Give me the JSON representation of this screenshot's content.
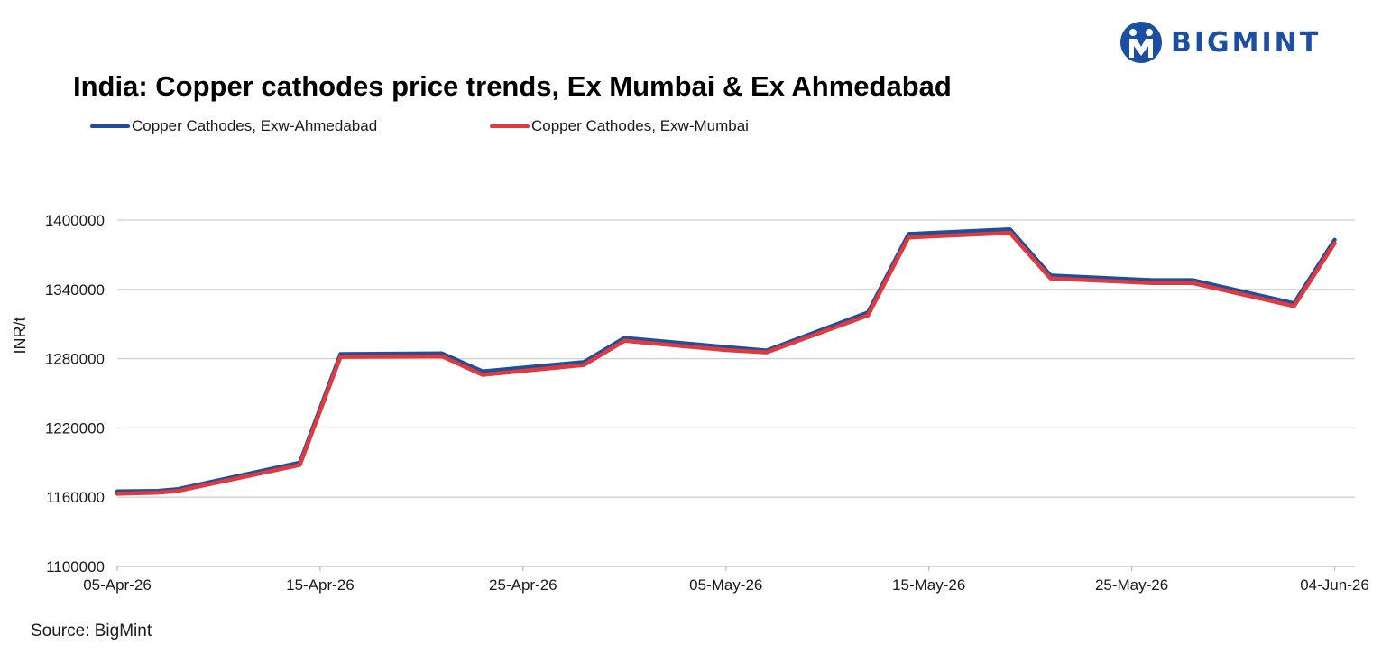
{
  "logo": {
    "text": "BIGMINT",
    "icon": "bigmint-logo-icon",
    "color": "#1c4fa0"
  },
  "source": "Source: BigMint",
  "chart_data": {
    "type": "line",
    "title": "India: Copper cathodes price trends, Ex Mumbai & Ex Ahmedabad",
    "xlabel": "",
    "ylabel": "INR/t",
    "ylim": [
      1100000,
      1400000
    ],
    "yticks": [
      "1100000",
      "1160000",
      "1220000",
      "1280000",
      "1340000",
      "1400000"
    ],
    "xlim": [
      "2026-04-05",
      "2026-06-05"
    ],
    "xticks": [
      {
        "date": "2026-04-05",
        "label": "05-Apr-26"
      },
      {
        "date": "2026-04-15",
        "label": "15-Apr-26"
      },
      {
        "date": "2026-04-25",
        "label": "25-Apr-26"
      },
      {
        "date": "2026-05-05",
        "label": "05-May-26"
      },
      {
        "date": "2026-05-15",
        "label": "15-May-26"
      },
      {
        "date": "2026-05-25",
        "label": "25-May-26"
      },
      {
        "date": "2026-06-04",
        "label": "04-Jun-26"
      }
    ],
    "grid": true,
    "legend": "top-left",
    "x": [
      "2026-04-05",
      "2026-04-07",
      "2026-04-08",
      "2026-04-14",
      "2026-04-16",
      "2026-04-21",
      "2026-04-23",
      "2026-04-28",
      "2026-04-30",
      "2026-05-05",
      "2026-05-07",
      "2026-05-12",
      "2026-05-14",
      "2026-05-19",
      "2026-05-21",
      "2026-05-26",
      "2026-05-28",
      "2026-06-02",
      "2026-06-04"
    ],
    "series": [
      {
        "name": "Copper Cathodes, Exw-Ahmedabad",
        "color": "#1c4fa0",
        "values": [
          1165000,
          1165500,
          1167000,
          1190000,
          1284000,
          1284500,
          1269000,
          1277000,
          1298000,
          1290000,
          1287000,
          1320000,
          1388000,
          1392000,
          1352000,
          1348000,
          1348000,
          1328000,
          1383000
        ]
      },
      {
        "name": "Copper Cathodes, Exw-Mumbai",
        "color": "#e0393e",
        "values": [
          1163000,
          1164000,
          1165500,
          1188000,
          1281500,
          1282000,
          1266000,
          1274500,
          1295500,
          1287500,
          1285500,
          1317500,
          1385000,
          1389000,
          1349500,
          1345500,
          1345500,
          1325500,
          1380000
        ]
      }
    ]
  }
}
